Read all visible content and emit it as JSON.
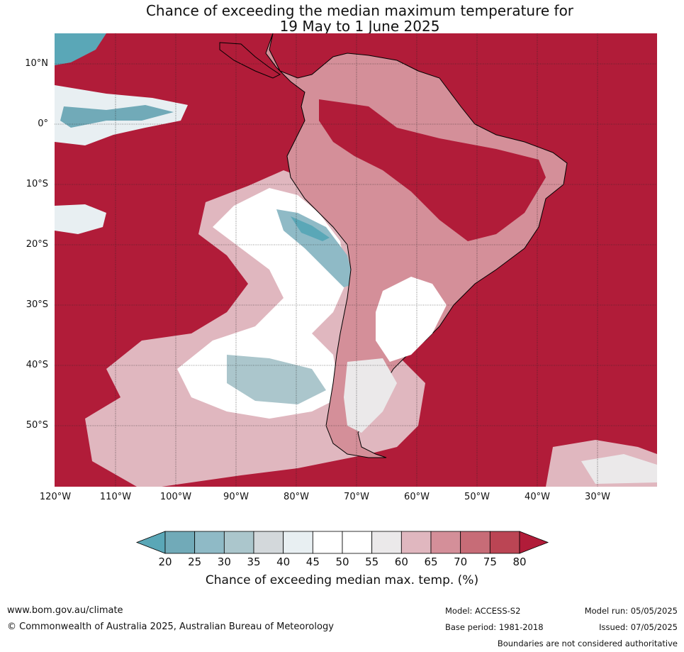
{
  "title_line1": "Chance of exceeding the median maximum temperature for",
  "title_line2": "19 May to 1 June 2025",
  "map": {
    "lat_labels": [
      "10°N",
      "0°",
      "10°S",
      "20°S",
      "30°S",
      "40°S",
      "50°S"
    ],
    "lon_labels": [
      "120°W",
      "110°W",
      "100°W",
      "90°W",
      "80°W",
      "70°W",
      "60°W",
      "50°W",
      "40°W",
      "30°W"
    ],
    "region": "South America",
    "ocean_fill": "#b11c39",
    "grid_color": "#333333"
  },
  "colorbar": {
    "ticks": [
      "20",
      "25",
      "30",
      "35",
      "40",
      "45",
      "50",
      "55",
      "60",
      "65",
      "70",
      "75",
      "80"
    ],
    "colors": [
      "#5aa7b7",
      "#71aab8",
      "#8fbac6",
      "#abc6cc",
      "#d3d8db",
      "#e8eff2",
      "#ffffff",
      "#ffffff",
      "#ebe9ea",
      "#e0b7bf",
      "#d48f99",
      "#c76c77",
      "#bb4554",
      "#b11c39"
    ],
    "label": "Chance of exceeding median max. temp. (%)"
  },
  "footer": {
    "website": "www.bom.gov.au/climate",
    "copyright": "© Commonwealth of Australia 2025, Australian Bureau of Meteorology",
    "model": "Model: ACCESS-S2",
    "base_period": "Base period: 1981-2018",
    "model_run": "Model run: 05/05/2025",
    "issued": "Issued: 07/05/2025",
    "disclaimer": "Boundaries are not considered authoritative"
  }
}
